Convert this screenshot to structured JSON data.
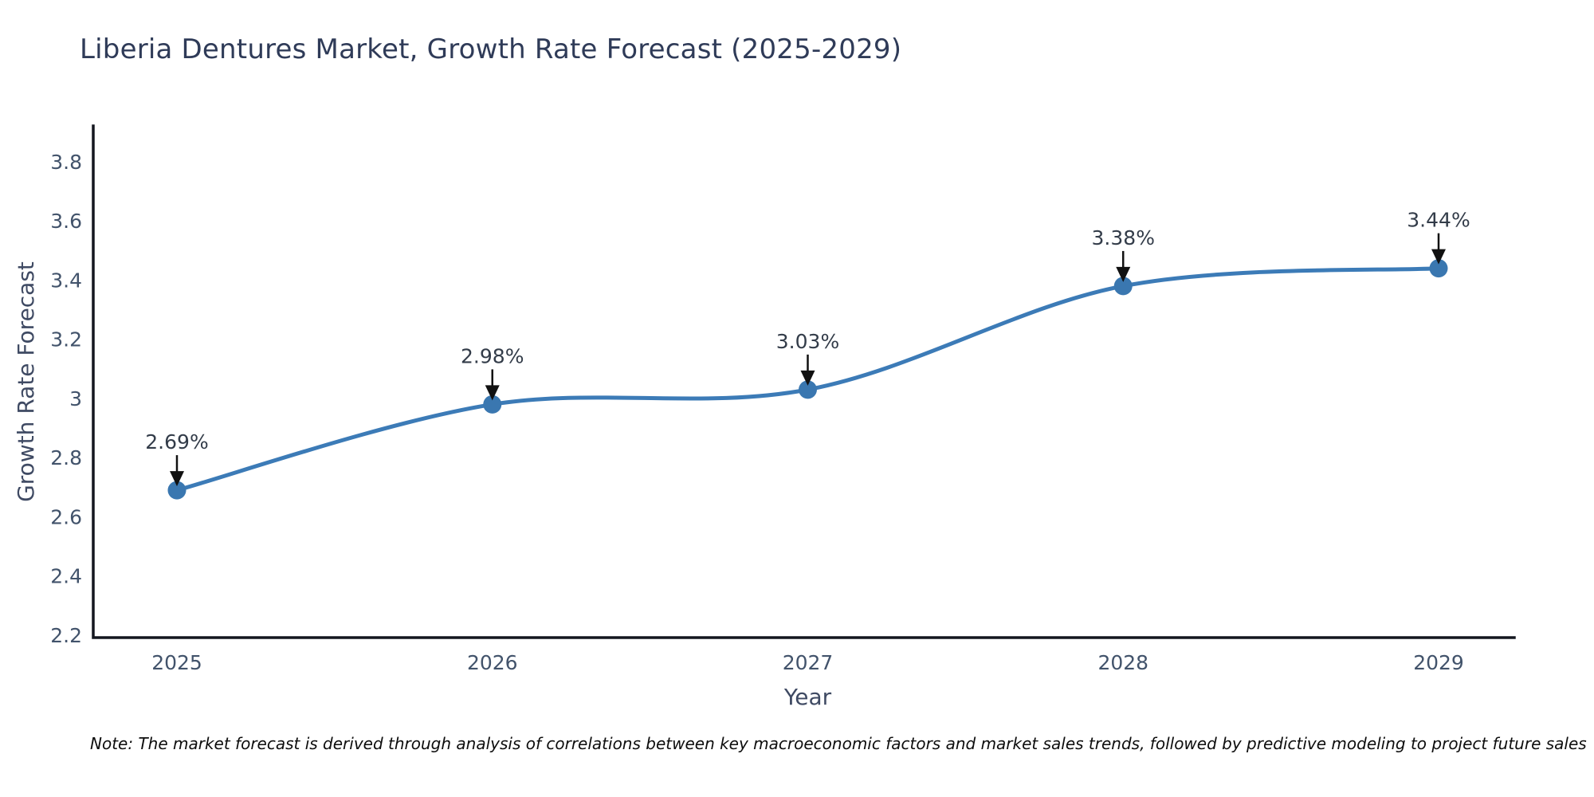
{
  "title": "Liberia Dentures Market, Growth Rate Forecast (2025-2029)",
  "note": "Note: The market forecast is derived through analysis of correlations between key macroeconomic factors and market sales trends, followed by predictive modeling to project future sales",
  "colors": {
    "line": "#3c7bb7",
    "marker": "#3a77b0",
    "axis": "#13161f",
    "title_text": "#2f3b58",
    "axis_title_text": "#3f4a63",
    "tick_text": "#42536b",
    "annotation_text": "#333c49",
    "arrow": "#111111",
    "note_text": "#0d0d0d",
    "background": "#ffffff"
  },
  "chart_data": {
    "type": "line",
    "title": "Liberia Dentures Market, Growth Rate Forecast (2025-2029)",
    "xlabel": "Year",
    "ylabel": "Growth Rate Forecast",
    "x": [
      2025,
      2026,
      2027,
      2028,
      2029
    ],
    "xticks": [
      "2025",
      "2026",
      "2027",
      "2028",
      "2029"
    ],
    "series": [
      {
        "name": "Growth Rate Forecast",
        "values": [
          2.69,
          2.98,
          3.03,
          3.38,
          3.44
        ],
        "point_labels": [
          "2.69%",
          "2.98%",
          "3.03%",
          "3.38%",
          "3.44%"
        ]
      }
    ],
    "yticks": [
      {
        "label": "3.8",
        "value": 3.8
      },
      {
        "label": "3.6",
        "value": 3.6
      },
      {
        "label": "3.4",
        "value": 3.4
      },
      {
        "label": "3.2",
        "value": 3.2
      },
      {
        "label": "3",
        "value": 3.0
      },
      {
        "label": "2.8",
        "value": 2.8
      },
      {
        "label": "2.6",
        "value": 2.6
      },
      {
        "label": "2.4",
        "value": 2.4
      },
      {
        "label": "2.2",
        "value": 2.2
      }
    ],
    "ylim": [
      2.2,
      3.8
    ],
    "grid": false,
    "legend": "none",
    "line_shape": "spline",
    "marker": "circle",
    "annotations": "arrow-down-to-point"
  }
}
